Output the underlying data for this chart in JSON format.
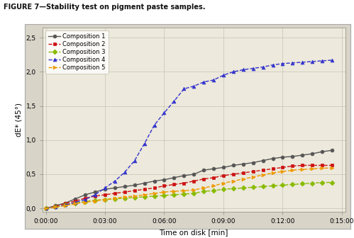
{
  "title": "FIGURE 7—Stability test on pigment paste samples.",
  "xlabel": "Time on disk [min]",
  "ylabel": "dE* (45°)",
  "outer_bg": "#ffffff",
  "chart_border_bg": "#d8d4c8",
  "plot_bg_color": "#ede9dc",
  "compositions": [
    {
      "label": "Composition 1",
      "color": "#555555",
      "linestyle": "-",
      "marker": "o",
      "times": [
        0,
        30,
        60,
        90,
        120,
        150,
        180,
        210,
        240,
        270,
        300,
        330,
        360,
        390,
        420,
        450,
        480,
        510,
        540,
        570,
        600,
        630,
        660,
        690,
        720,
        750,
        780,
        810,
        840,
        870
      ],
      "values": [
        0.0,
        0.04,
        0.08,
        0.14,
        0.2,
        0.24,
        0.28,
        0.3,
        0.32,
        0.34,
        0.37,
        0.4,
        0.42,
        0.45,
        0.48,
        0.5,
        0.56,
        0.58,
        0.6,
        0.63,
        0.65,
        0.67,
        0.7,
        0.73,
        0.75,
        0.76,
        0.78,
        0.8,
        0.83,
        0.85
      ]
    },
    {
      "label": "Composition 2",
      "color": "#cc1111",
      "linestyle": "--",
      "marker": "s",
      "times": [
        0,
        30,
        60,
        90,
        120,
        150,
        180,
        210,
        240,
        270,
        300,
        330,
        360,
        390,
        420,
        450,
        480,
        510,
        540,
        570,
        600,
        630,
        660,
        690,
        720,
        750,
        780,
        810,
        840,
        870
      ],
      "values": [
        0.0,
        0.03,
        0.07,
        0.11,
        0.15,
        0.18,
        0.2,
        0.22,
        0.24,
        0.26,
        0.28,
        0.3,
        0.33,
        0.35,
        0.37,
        0.4,
        0.43,
        0.45,
        0.48,
        0.5,
        0.52,
        0.54,
        0.56,
        0.58,
        0.6,
        0.62,
        0.63,
        0.63,
        0.63,
        0.63
      ]
    },
    {
      "label": "Composition 3",
      "color": "#88bb00",
      "linestyle": "--",
      "marker": "D",
      "times": [
        0,
        30,
        60,
        90,
        120,
        150,
        180,
        210,
        240,
        270,
        300,
        330,
        360,
        390,
        420,
        450,
        480,
        510,
        540,
        570,
        600,
        630,
        660,
        690,
        720,
        750,
        780,
        810,
        840,
        870
      ],
      "values": [
        0.0,
        0.02,
        0.05,
        0.08,
        0.1,
        0.12,
        0.13,
        0.14,
        0.15,
        0.16,
        0.17,
        0.18,
        0.19,
        0.2,
        0.21,
        0.22,
        0.25,
        0.26,
        0.28,
        0.29,
        0.3,
        0.31,
        0.32,
        0.33,
        0.34,
        0.35,
        0.36,
        0.37,
        0.38,
        0.38
      ]
    },
    {
      "label": "Composition 4",
      "color": "#3333cc",
      "linestyle": "--",
      "marker": "^",
      "times": [
        0,
        30,
        60,
        90,
        120,
        150,
        180,
        210,
        240,
        270,
        300,
        330,
        360,
        390,
        420,
        450,
        480,
        510,
        540,
        570,
        600,
        630,
        660,
        690,
        720,
        750,
        780,
        810,
        840,
        870
      ],
      "values": [
        0.0,
        0.02,
        0.05,
        0.09,
        0.13,
        0.2,
        0.3,
        0.4,
        0.53,
        0.7,
        0.95,
        1.22,
        1.4,
        1.57,
        1.75,
        1.79,
        1.85,
        1.88,
        1.95,
        2.0,
        2.03,
        2.05,
        2.07,
        2.1,
        2.12,
        2.13,
        2.14,
        2.15,
        2.16,
        2.17
      ]
    },
    {
      "label": "Composition 5",
      "color": "#ee9900",
      "linestyle": "--",
      "marker": ">",
      "times": [
        0,
        30,
        60,
        90,
        120,
        150,
        180,
        210,
        240,
        270,
        300,
        330,
        360,
        390,
        420,
        450,
        480,
        510,
        540,
        570,
        600,
        630,
        660,
        690,
        720,
        750,
        780,
        810,
        840,
        870
      ],
      "values": [
        0.0,
        0.02,
        0.04,
        0.07,
        0.09,
        0.11,
        0.13,
        0.15,
        0.17,
        0.18,
        0.2,
        0.22,
        0.24,
        0.25,
        0.26,
        0.27,
        0.3,
        0.33,
        0.37,
        0.4,
        0.43,
        0.46,
        0.49,
        0.52,
        0.54,
        0.56,
        0.57,
        0.58,
        0.59,
        0.59
      ]
    }
  ],
  "yticks": [
    0.0,
    0.5,
    1.0,
    1.5,
    2.0,
    2.5
  ],
  "ytick_labels": [
    "0,0",
    "0,5",
    "1,0",
    "1,5",
    "2,0",
    "2,5"
  ],
  "ylim": [
    -0.05,
    2.65
  ],
  "xlim": [
    -10,
    910
  ],
  "xtick_seconds": [
    0,
    180,
    360,
    540,
    720,
    900
  ],
  "xtick_labels": [
    "0:00:00",
    "0:03:00",
    "0:06:00",
    "0:09:00",
    "0:12:00",
    "0:15:00"
  ],
  "title_fontsize": 7.0,
  "tick_fontsize": 6.5,
  "label_fontsize": 7.5,
  "legend_fontsize": 6.0
}
